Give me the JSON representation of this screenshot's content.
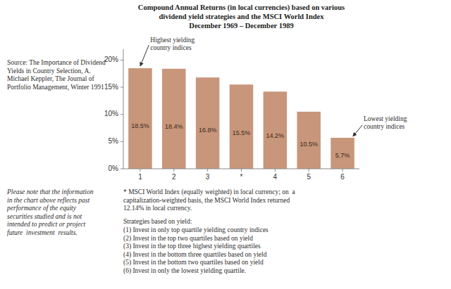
{
  "chart_data": {
    "type": "bar",
    "title": "Compound Annual Returns (in local currencies) based on various\ndividend yield strategies and the MSCI World Index\nDecember 1969 – December 1989",
    "categories": [
      "1",
      "2",
      "3",
      "*",
      "4",
      "5",
      "6"
    ],
    "values": [
      18.5,
      18.4,
      16.8,
      15.5,
      14.2,
      10.5,
      5.7
    ],
    "value_labels": [
      "18.5%",
      "18.4%",
      "16.8%",
      "15.5%",
      "14.2%",
      "10.5%",
      "5.7%"
    ],
    "data_labels": true,
    "color": "#C8967A",
    "ylim": [
      0,
      22
    ],
    "yticks": [
      {
        "value": 0,
        "label": "0%"
      },
      {
        "value": 5,
        "label": "5%"
      },
      {
        "value": 10,
        "label": "10%"
      },
      {
        "value": 15,
        "label": "15%"
      },
      {
        "value": 20,
        "label": "20%"
      }
    ],
    "grid": false,
    "annotations": [
      {
        "text": "Highest yielding\ncountry indices",
        "category": "1"
      },
      {
        "text": "Lowest yielding\ncountry indices",
        "category": "6"
      }
    ],
    "source": "Source: The Importance of Dividend Yields in Country Selection, A. Michael Keppler, The Journal of Portfolio Management, Winter 1991",
    "footnote": "* MSCI World Index (equally weighted) in local currency; on  a\ncapitalization-weighted basis, the MSCI World Index returned\n12.14% in local currency.",
    "strategies_title": "Strategies based on yield:",
    "strategies": [
      "(1) Invest in only top quartile yielding country indices",
      "(2) Invest in the top two quartiles based on yield",
      "(3) Invest in the top three highest yielding quartiles",
      "(4) Invest in the bottom three quartiles based on yield",
      "(5) Invest in the bottom two quartiles based on yield",
      "(6) Invest in only the lowest yielding quartile."
    ],
    "disclaimer": "Please note that the information\nin the chart above reflects past\nperformance of the equity\nsecurities studied and is not\nintended to predict or project\nfuture  investment  results."
  }
}
